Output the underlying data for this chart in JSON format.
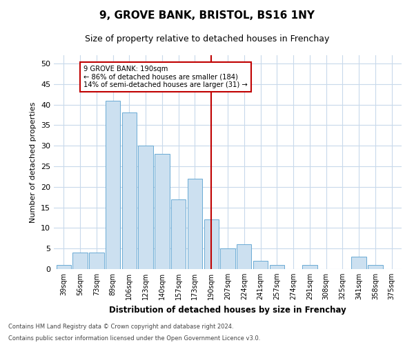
{
  "title": "9, GROVE BANK, BRISTOL, BS16 1NY",
  "subtitle": "Size of property relative to detached houses in Frenchay",
  "xlabel": "Distribution of detached houses by size in Frenchay",
  "ylabel": "Number of detached properties",
  "categories": [
    "39sqm",
    "56sqm",
    "73sqm",
    "89sqm",
    "106sqm",
    "123sqm",
    "140sqm",
    "157sqm",
    "173sqm",
    "190sqm",
    "207sqm",
    "224sqm",
    "241sqm",
    "257sqm",
    "274sqm",
    "291sqm",
    "308sqm",
    "325sqm",
    "341sqm",
    "358sqm",
    "375sqm"
  ],
  "values": [
    1,
    4,
    4,
    41,
    38,
    30,
    28,
    17,
    22,
    12,
    5,
    6,
    2,
    1,
    0,
    1,
    0,
    0,
    3,
    1,
    0
  ],
  "bar_color": "#cce0f0",
  "bar_edge_color": "#6aaad4",
  "vline_x": 9,
  "vline_color": "#c00000",
  "annotation_text": "9 GROVE BANK: 190sqm\n← 86% of detached houses are smaller (184)\n14% of semi-detached houses are larger (31) →",
  "annotation_box_color": "#c00000",
  "ylim": [
    0,
    52
  ],
  "yticks": [
    0,
    5,
    10,
    15,
    20,
    25,
    30,
    35,
    40,
    45,
    50
  ],
  "background_color": "#ffffff",
  "grid_color": "#c8d9eb",
  "footer_line1": "Contains HM Land Registry data © Crown copyright and database right 2024.",
  "footer_line2": "Contains public sector information licensed under the Open Government Licence v3.0.",
  "title_fontsize": 11,
  "subtitle_fontsize": 9,
  "bar_width": 0.9
}
